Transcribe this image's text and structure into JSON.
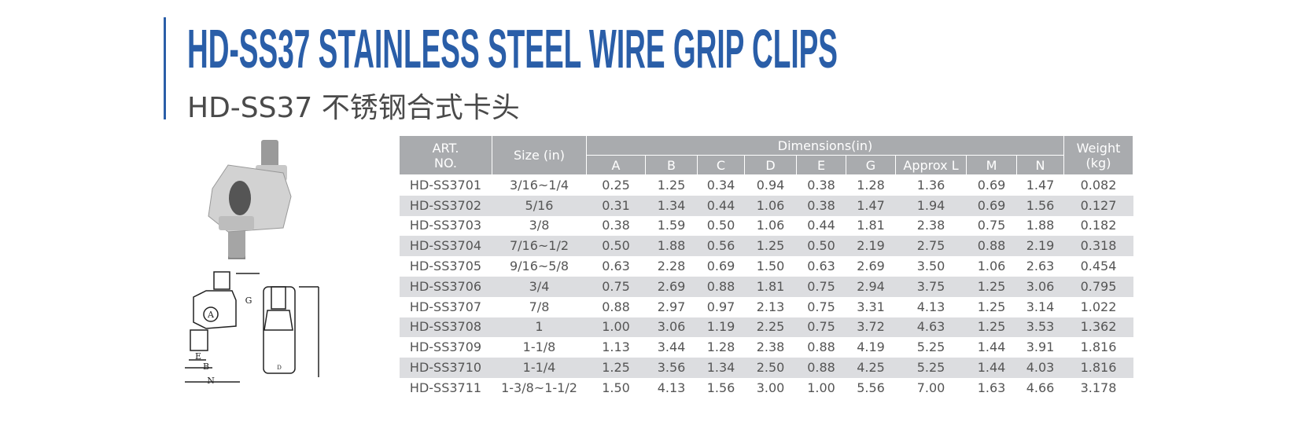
{
  "header": {
    "title": "HD-SS37 STAINLESS STEEL WIRE GRIP CLIPS",
    "subtitle": "HD-SS37 不锈钢合式卡头"
  },
  "diagram": {
    "labels": [
      "A",
      "G",
      "E",
      "B",
      "N",
      "D"
    ]
  },
  "table": {
    "art_no": [
      "ART.",
      "NO."
    ],
    "size": "Size (in)",
    "group_header": "Dimensions(in)",
    "weight": [
      "Weight",
      "(kg)"
    ],
    "columns": [
      "A",
      "B",
      "C",
      "D",
      "E",
      "G",
      "Approx L",
      "M",
      "N"
    ],
    "rows": [
      [
        "HD-SS3701",
        "3/16~1/4",
        "0.25",
        "1.25",
        "0.34",
        "0.94",
        "0.38",
        "1.28",
        "1.36",
        "0.69",
        "1.47",
        "0.082"
      ],
      [
        "HD-SS3702",
        "5/16",
        "0.31",
        "1.34",
        "0.44",
        "1.06",
        "0.38",
        "1.47",
        "1.94",
        "0.69",
        "1.56",
        "0.127"
      ],
      [
        "HD-SS3703",
        "3/8",
        "0.38",
        "1.59",
        "0.50",
        "1.06",
        "0.44",
        "1.81",
        "2.38",
        "0.75",
        "1.88",
        "0.182"
      ],
      [
        "HD-SS3704",
        "7/16~1/2",
        "0.50",
        "1.88",
        "0.56",
        "1.25",
        "0.50",
        "2.19",
        "2.75",
        "0.88",
        "2.19",
        "0.318"
      ],
      [
        "HD-SS3705",
        "9/16~5/8",
        "0.63",
        "2.28",
        "0.69",
        "1.50",
        "0.63",
        "2.69",
        "3.50",
        "1.06",
        "2.63",
        "0.454"
      ],
      [
        "HD-SS3706",
        "3/4",
        "0.75",
        "2.69",
        "0.88",
        "1.81",
        "0.75",
        "2.94",
        "3.75",
        "1.25",
        "3.06",
        "0.795"
      ],
      [
        "HD-SS3707",
        "7/8",
        "0.88",
        "2.97",
        "0.97",
        "2.13",
        "0.75",
        "3.31",
        "4.13",
        "1.25",
        "3.14",
        "1.022"
      ],
      [
        "HD-SS3708",
        "1",
        "1.00",
        "3.06",
        "1.19",
        "2.25",
        "0.75",
        "3.72",
        "4.63",
        "1.25",
        "3.53",
        "1.362"
      ],
      [
        "HD-SS3709",
        "1-1/8",
        "1.13",
        "3.44",
        "1.28",
        "2.38",
        "0.88",
        "4.19",
        "5.25",
        "1.44",
        "3.91",
        "1.816"
      ],
      [
        "HD-SS3710",
        "1-1/4",
        "1.25",
        "3.56",
        "1.34",
        "2.50",
        "0.88",
        "4.25",
        "5.25",
        "1.44",
        "4.03",
        "1.816"
      ],
      [
        "HD-SS3711",
        "1-3/8~1-1/2",
        "1.50",
        "4.13",
        "1.56",
        "3.00",
        "1.00",
        "5.56",
        "7.00",
        "1.63",
        "4.66",
        "3.178"
      ]
    ]
  }
}
